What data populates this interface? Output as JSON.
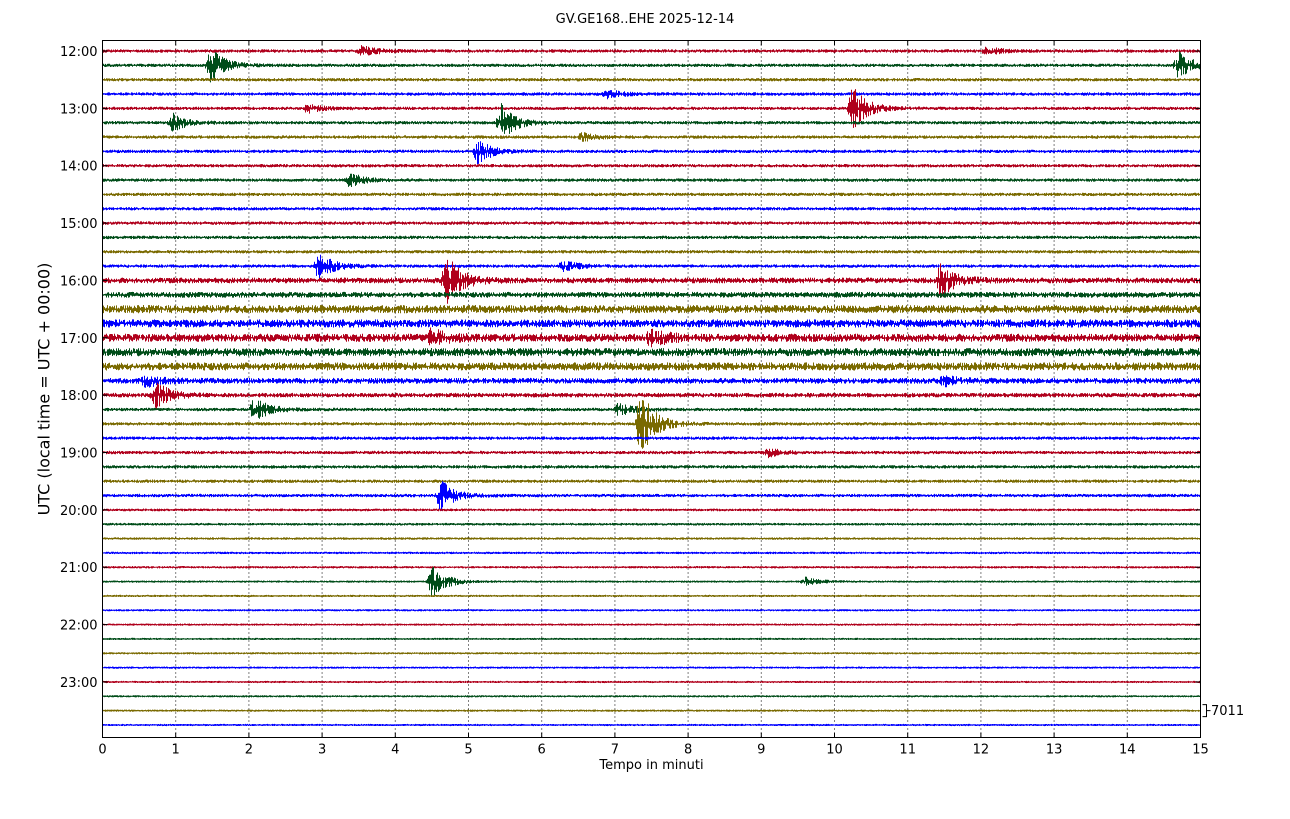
{
  "chart_data": {
    "type": "line",
    "title": "GV.GE168..EHE 2025-12-14",
    "xlabel": "Tempo in minuti",
    "ylabel": "UTC (local time = UTC + 00:00)",
    "xlim": [
      0,
      15
    ],
    "x_ticks": [
      "0",
      "1",
      "2",
      "3",
      "4",
      "5",
      "6",
      "7",
      "8",
      "9",
      "10",
      "11",
      "12",
      "13",
      "14",
      "15"
    ],
    "y_tick_labels": [
      "12:00",
      "13:00",
      "14:00",
      "15:00",
      "16:00",
      "17:00",
      "18:00",
      "19:00",
      "20:00",
      "21:00",
      "22:00",
      "23:00"
    ],
    "trace_interval_minutes": 15,
    "start_time": "12:00",
    "trace_colors": [
      "#b0001c",
      "#004d19",
      "#7a6a00",
      "#0000ff"
    ],
    "vertical_grid": "dotted",
    "scale_label": "7011",
    "noise_levels": [
      1,
      1,
      1,
      1,
      1,
      1,
      1,
      1,
      1,
      1,
      1,
      1,
      1,
      1,
      1,
      1,
      2,
      2,
      3,
      3,
      3,
      3,
      3,
      2,
      1.5,
      1,
      1,
      1,
      1,
      1,
      1,
      1,
      0.7,
      0.7,
      0.6,
      0.6,
      0.6,
      0.5,
      0.5,
      0.5,
      0.5,
      0.5,
      0.5,
      0.5,
      0.5,
      0.5,
      0.5,
      0.5
    ],
    "events": [
      {
        "trace": "12:00",
        "minute": 3.55,
        "amplitude": 0.4
      },
      {
        "trace": "12:00",
        "minute": 12.08,
        "amplitude": 0.3
      },
      {
        "trace": "12:15",
        "minute": 1.48,
        "amplitude": 1.2
      },
      {
        "trace": "12:15",
        "minute": 14.7,
        "amplitude": 1.0
      },
      {
        "trace": "12:45",
        "minute": 6.9,
        "amplitude": 0.3
      },
      {
        "trace": "13:00",
        "minute": 10.25,
        "amplitude": 1.6
      },
      {
        "trace": "13:00",
        "minute": 2.8,
        "amplitude": 0.3
      },
      {
        "trace": "13:15",
        "minute": 0.95,
        "amplitude": 0.7
      },
      {
        "trace": "13:15",
        "minute": 5.45,
        "amplitude": 1.3
      },
      {
        "trace": "13:30",
        "minute": 6.55,
        "amplitude": 0.3
      },
      {
        "trace": "13:45",
        "minute": 5.13,
        "amplitude": 0.9
      },
      {
        "trace": "14:15",
        "minute": 3.38,
        "amplitude": 0.5
      },
      {
        "trace": "15:45",
        "minute": 2.95,
        "amplitude": 1.0
      },
      {
        "trace": "15:45",
        "minute": 6.3,
        "amplitude": 0.4
      },
      {
        "trace": "16:00",
        "minute": 4.7,
        "amplitude": 1.8
      },
      {
        "trace": "16:00",
        "minute": 11.45,
        "amplitude": 1.2
      },
      {
        "trace": "17:00",
        "minute": 4.5,
        "amplitude": 0.6
      },
      {
        "trace": "17:00",
        "minute": 7.5,
        "amplitude": 0.6
      },
      {
        "trace": "17:45",
        "minute": 0.6,
        "amplitude": 0.4
      },
      {
        "trace": "17:45",
        "minute": 11.5,
        "amplitude": 0.3
      },
      {
        "trace": "18:00",
        "minute": 0.72,
        "amplitude": 1.0
      },
      {
        "trace": "18:15",
        "minute": 2.08,
        "amplitude": 0.9
      },
      {
        "trace": "18:15",
        "minute": 7.05,
        "amplitude": 0.5
      },
      {
        "trace": "18:30",
        "minute": 7.35,
        "amplitude": 2.5
      },
      {
        "trace": "19:00",
        "minute": 9.1,
        "amplitude": 0.3
      },
      {
        "trace": "19:45",
        "minute": 4.62,
        "amplitude": 1.1
      },
      {
        "trace": "21:15",
        "minute": 4.5,
        "amplitude": 1.2
      },
      {
        "trace": "21:15",
        "minute": 9.6,
        "amplitude": 0.3
      }
    ]
  }
}
